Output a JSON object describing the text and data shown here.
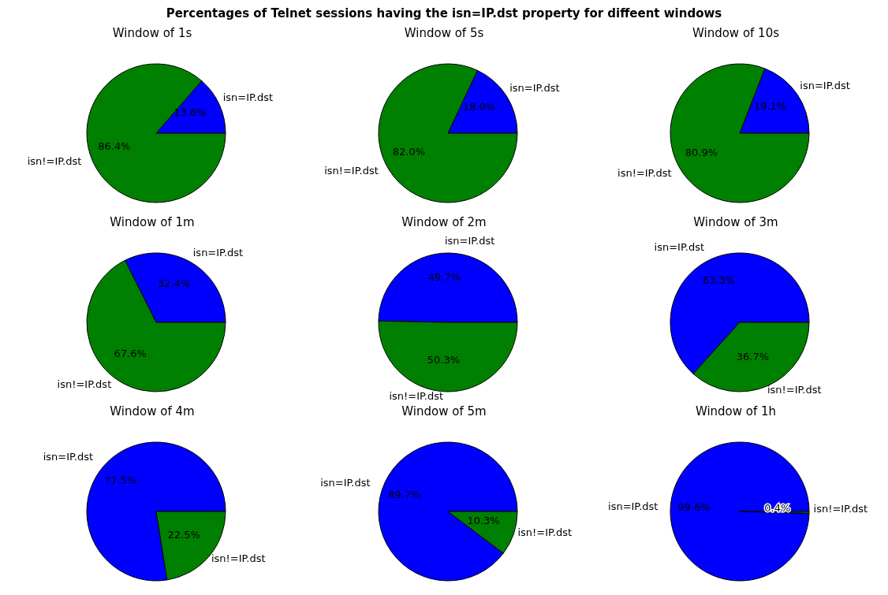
{
  "chart_data": [
    {
      "type": "pie",
      "title": "Window of 1s",
      "annotations": [
        "Percentages of Telnet sessions having the isn=IP.dst property for diffeent windows"
      ],
      "categories": [
        "isn=IP.dst",
        "isn!=IP.dst"
      ],
      "values": [
        13.6,
        86.4
      ],
      "colors": [
        "#0000ff",
        "#008000"
      ],
      "value_labels": [
        "13.6%",
        "86.4%"
      ],
      "legend": false
    },
    {
      "type": "pie",
      "title": "Window of 5s",
      "categories": [
        "isn=IP.dst",
        "isn!=IP.dst"
      ],
      "values": [
        18.0,
        82.0
      ],
      "colors": [
        "#0000ff",
        "#008000"
      ],
      "value_labels": [
        "18.0%",
        "82.0%"
      ],
      "legend": false
    },
    {
      "type": "pie",
      "title": "Window of 10s",
      "categories": [
        "isn=IP.dst",
        "isn!=IP.dst"
      ],
      "values": [
        19.1,
        80.9
      ],
      "colors": [
        "#0000ff",
        "#008000"
      ],
      "value_labels": [
        "19.1%",
        "80.9%"
      ],
      "legend": false
    },
    {
      "type": "pie",
      "title": "Window of 1m",
      "categories": [
        "isn=IP.dst",
        "isn!=IP.dst"
      ],
      "values": [
        32.4,
        67.6
      ],
      "colors": [
        "#0000ff",
        "#008000"
      ],
      "value_labels": [
        "32.4%",
        "67.6%"
      ],
      "legend": false
    },
    {
      "type": "pie",
      "title": "Window of 2m",
      "categories": [
        "isn=IP.dst",
        "isn!=IP.dst"
      ],
      "values": [
        49.7,
        50.3
      ],
      "colors": [
        "#0000ff",
        "#008000"
      ],
      "value_labels": [
        "49.7%",
        "50.3%"
      ],
      "legend": false
    },
    {
      "type": "pie",
      "title": "Window of 3m",
      "categories": [
        "isn=IP.dst",
        "isn!=IP.dst"
      ],
      "values": [
        63.3,
        36.7
      ],
      "colors": [
        "#0000ff",
        "#008000"
      ],
      "value_labels": [
        "63.3%",
        "36.7%"
      ],
      "legend": false
    },
    {
      "type": "pie",
      "title": "Window of 4m",
      "categories": [
        "isn=IP.dst",
        "isn!=IP.dst"
      ],
      "values": [
        77.5,
        22.5
      ],
      "colors": [
        "#0000ff",
        "#008000"
      ],
      "value_labels": [
        "77.5%",
        "22.5%"
      ],
      "legend": false
    },
    {
      "type": "pie",
      "title": "Window of 5m",
      "categories": [
        "isn=IP.dst",
        "isn!=IP.dst"
      ],
      "values": [
        89.7,
        10.3
      ],
      "colors": [
        "#0000ff",
        "#008000"
      ],
      "value_labels": [
        "89.7%",
        "10.3%"
      ],
      "legend": false
    },
    {
      "type": "pie",
      "title": "Window of 1h",
      "categories": [
        "isn=IP.dst",
        "isn!=IP.dst"
      ],
      "values": [
        99.6,
        0.4
      ],
      "colors": [
        "#0000ff",
        "#008000"
      ],
      "value_labels": [
        "99.6%",
        "0.4%"
      ],
      "legend": false
    }
  ]
}
